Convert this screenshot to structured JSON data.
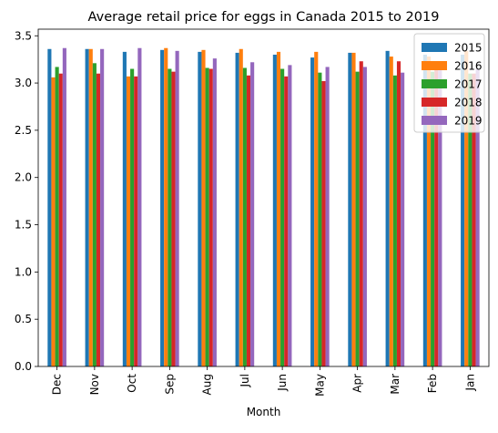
{
  "chart_data": {
    "type": "bar",
    "title": "Average retail price for eggs in Canada 2015 to 2019",
    "xlabel": "Month",
    "ylabel": "",
    "ylim": [
      0,
      3.57
    ],
    "yticks": [
      "0.0",
      "0.5",
      "1.0",
      "1.5",
      "2.0",
      "2.5",
      "3.0",
      "3.5"
    ],
    "grid": false,
    "legend_position": "top-right",
    "categories": [
      "Dec",
      "Nov",
      "Oct",
      "Sep",
      "Aug",
      "Jul",
      "Jun",
      "May",
      "Apr",
      "Mar",
      "Feb",
      "Jan"
    ],
    "series": [
      {
        "name": "2015",
        "color": "#1f77b4",
        "values": [
          3.36,
          3.36,
          3.33,
          3.35,
          3.33,
          3.32,
          3.3,
          3.27,
          3.32,
          3.34,
          3.3,
          3.3
        ]
      },
      {
        "name": "2016",
        "color": "#ff7f0e",
        "values": [
          3.06,
          3.36,
          3.07,
          3.37,
          3.35,
          3.36,
          3.33,
          3.33,
          3.32,
          3.28,
          3.28,
          3.34
        ]
      },
      {
        "name": "2017",
        "color": "#2ca02c",
        "values": [
          3.17,
          3.21,
          3.15,
          3.15,
          3.16,
          3.16,
          3.15,
          3.11,
          3.12,
          3.08,
          3.12,
          3.1
        ]
      },
      {
        "name": "2018",
        "color": "#d62728",
        "values": [
          3.1,
          3.1,
          3.07,
          3.12,
          3.15,
          3.08,
          3.07,
          3.02,
          3.23,
          3.23,
          3.16,
          3.1
        ]
      },
      {
        "name": "2019",
        "color": "#9467bd",
        "values": [
          3.37,
          3.36,
          3.37,
          3.34,
          3.26,
          3.22,
          3.19,
          3.17,
          3.17,
          3.11,
          3.15,
          3.15
        ]
      }
    ]
  }
}
